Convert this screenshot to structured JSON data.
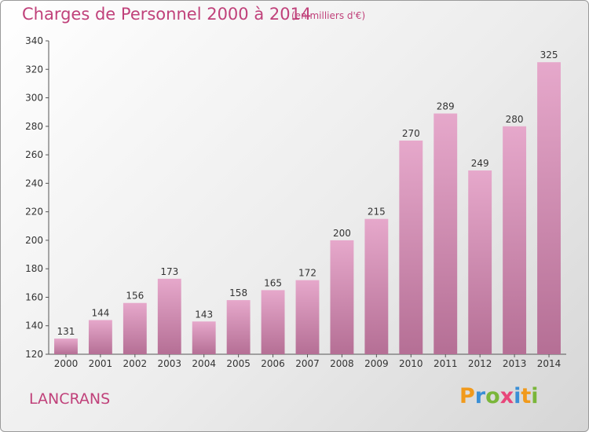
{
  "chart_data": {
    "type": "bar",
    "title": "Charges de Personnel 2000 à 2014",
    "subtitle": "(en milliers d'€)",
    "categories": [
      "2000",
      "2001",
      "2002",
      "2003",
      "2004",
      "2005",
      "2006",
      "2007",
      "2008",
      "2009",
      "2010",
      "2011",
      "2012",
      "2013",
      "2014"
    ],
    "values": [
      131,
      144,
      156,
      173,
      143,
      158,
      165,
      172,
      200,
      215,
      270,
      289,
      249,
      280,
      325
    ],
    "ylim": [
      120,
      340
    ],
    "yticks": [
      120,
      140,
      160,
      180,
      200,
      220,
      240,
      260,
      280,
      300,
      320,
      340
    ],
    "xlabel": "",
    "ylabel": "",
    "bar_color_light": "#e6a8cb",
    "bar_color_dark": "#b56f95",
    "grid": false
  },
  "footer": {
    "commune": "LANCRANS",
    "logo_letters": [
      "P",
      "r",
      "o",
      "x",
      "i",
      "t",
      "i"
    ],
    "logo_colors": [
      "#f19a1c",
      "#3a8fd6",
      "#7ab63a",
      "#e8467a",
      "#3a8fd6",
      "#f19a1c",
      "#7ab63a"
    ]
  }
}
